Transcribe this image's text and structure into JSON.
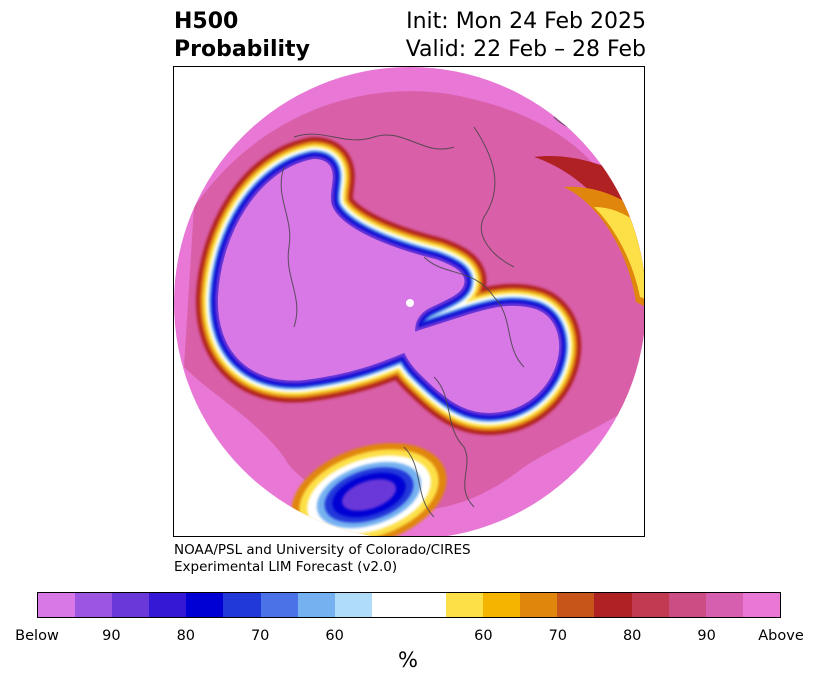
{
  "title": {
    "left_line1": "H500",
    "left_line2": "Probability",
    "right_line1": "Init: Mon 24 Feb 2025",
    "right_line2": "Valid: 22 Feb – 28 Feb"
  },
  "credit": {
    "line1": "NOAA/PSL and University of Colorado/CIRES",
    "line2": "Experimental LIM Forecast (v2.0)"
  },
  "colorbar": {
    "unit": "%",
    "colors": [
      "#d877e6",
      "#9b55e0",
      "#6a37d8",
      "#3418d6",
      "#0000d4",
      "#2239da",
      "#4b72e6",
      "#75b1f0",
      "#aedcf9",
      "#ffffff",
      "#ffffff",
      "#fde047",
      "#f5b400",
      "#e0860c",
      "#c75419",
      "#b02124",
      "#c13a52",
      "#cc4d83",
      "#d65fb0",
      "#e877d5"
    ],
    "tick_labels": [
      "Below",
      "90",
      "80",
      "70",
      "60",
      "60",
      "70",
      "80",
      "90",
      "Above"
    ]
  },
  "map": {
    "projection": "north-polar-stereographic",
    "colors": {
      "above_deep": "#e877d5",
      "above_mid": "#cc4d83",
      "above_dark": "#b02124",
      "above_orange": "#e0860c",
      "above_yellow": "#fde047",
      "below_deep": "#d877e6",
      "below_violet": "#6a37d8",
      "below_blue": "#0000d4",
      "below_light": "#75b1f0",
      "coast": "#444444"
    }
  }
}
